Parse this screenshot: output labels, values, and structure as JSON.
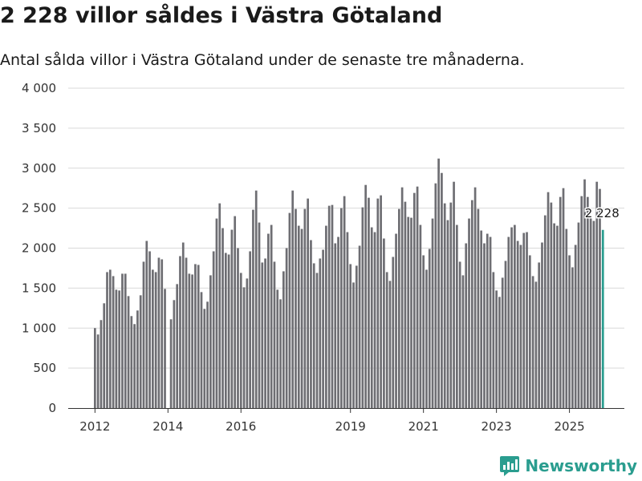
{
  "title": "2 228 villor såldes i Västra Götaland",
  "subtitle": "Antal sålda villor i Västra Götaland under de senaste tre månaderna.",
  "brand": "Newsworthy",
  "colors": {
    "bar": "#6e6e73",
    "highlight": "#2a9d8f",
    "grid": "#d9d9d9",
    "brand": "#2a9d8f"
  },
  "chart_data": {
    "type": "bar",
    "title": "2 228 villor såldes i Västra Götaland",
    "xlabel": "",
    "ylabel": "",
    "ylim": [
      0,
      4000
    ],
    "yticks": [
      0,
      500,
      1000,
      1500,
      2000,
      2500,
      3000,
      3500,
      4000
    ],
    "ytick_labels": [
      "0",
      "500",
      "1 000",
      "1 500",
      "2 000",
      "2 500",
      "3 000",
      "3 500",
      "4 000"
    ],
    "xticks": [
      {
        "label": "2012",
        "index": 0
      },
      {
        "label": "2014",
        "index": 24
      },
      {
        "label": "2016",
        "index": 48
      },
      {
        "label": "2019",
        "index": 84
      },
      {
        "label": "2021",
        "index": 108
      },
      {
        "label": "2023",
        "index": 132
      },
      {
        "label": "2025",
        "index": 156
      }
    ],
    "start": "2012-01",
    "grid": true,
    "highlight_index": 167,
    "annotation": {
      "index": 167,
      "text": "2 228"
    },
    "values": [
      1000,
      920,
      1100,
      1310,
      1700,
      1730,
      1650,
      1480,
      1470,
      1680,
      1680,
      1400,
      1150,
      1050,
      1220,
      1410,
      1830,
      2090,
      1960,
      1730,
      1700,
      1880,
      1860,
      1490,
      0,
      1110,
      1350,
      1550,
      1900,
      2070,
      1880,
      1680,
      1670,
      1800,
      1790,
      1450,
      1240,
      1330,
      1660,
      1960,
      2370,
      2560,
      2250,
      1940,
      1920,
      2230,
      2400,
      2000,
      1690,
      1510,
      1620,
      1960,
      2480,
      2720,
      2320,
      1820,
      1870,
      2180,
      2290,
      1830,
      1480,
      1360,
      1710,
      2000,
      2440,
      2720,
      2490,
      2280,
      2240,
      2490,
      2620,
      2100,
      1810,
      1690,
      1870,
      1980,
      2280,
      2530,
      2540,
      2060,
      2140,
      2500,
      2650,
      2200,
      1800,
      1570,
      1780,
      2030,
      2510,
      2790,
      2630,
      2260,
      2200,
      2620,
      2660,
      2120,
      1700,
      1590,
      1890,
      2180,
      2490,
      2760,
      2580,
      2390,
      2380,
      2690,
      2770,
      2290,
      1910,
      1730,
      1990,
      2370,
      2810,
      3120,
      2940,
      2560,
      2350,
      2570,
      2830,
      2290,
      1830,
      1660,
      2060,
      2370,
      2600,
      2760,
      2490,
      2220,
      2060,
      2180,
      2140,
      1700,
      1470,
      1390,
      1630,
      1840,
      2140,
      2260,
      2290,
      2090,
      2040,
      2190,
      2200,
      1910,
      1650,
      1580,
      1820,
      2070,
      2410,
      2700,
      2570,
      2310,
      2280,
      2640,
      2750,
      2240,
      1910,
      1760,
      2040,
      2320,
      2650,
      2860,
      2640,
      2380,
      2340,
      2830,
      2740,
      2228
    ]
  }
}
